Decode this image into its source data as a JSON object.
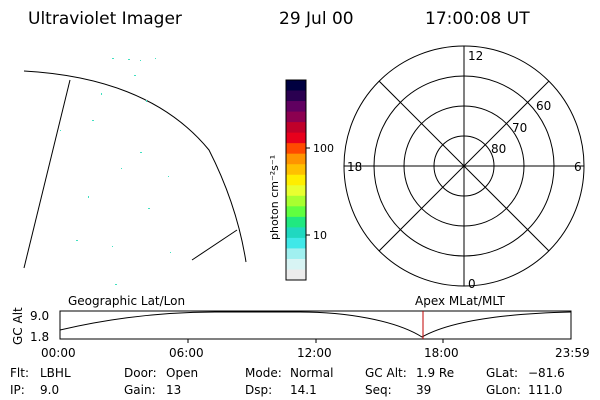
{
  "header": {
    "instrument": "Ultraviolet Imager",
    "date": "29 Jul 00",
    "time": "17:00:08 UT"
  },
  "colorbar": {
    "unit_label": "photon cm⁻²s⁻¹",
    "tick_labels": [
      "100",
      "10"
    ],
    "colors": [
      "#000040",
      "#2a0050",
      "#600060",
      "#8c0050",
      "#c0002a",
      "#e8001c",
      "#ff4a00",
      "#ff9400",
      "#ffc000",
      "#ffee00",
      "#e8ff30",
      "#a8ff30",
      "#60ff40",
      "#20e880",
      "#20d8c0",
      "#40e8e8",
      "#a0f0f0",
      "#d8f4f4",
      "#ececec"
    ]
  },
  "polar": {
    "mlt_labels": {
      "top": "12",
      "left": "18",
      "right": "6",
      "bottom": "0"
    },
    "lat_labels": [
      "60",
      "70",
      "80"
    ]
  },
  "altitude_plot": {
    "axis_label": "GC Alt",
    "y_ticks": [
      "9.0",
      "1.8"
    ],
    "left_title": "Geographic Lat/Lon",
    "right_title": "Apex MLat/MLT",
    "x_ticks": [
      "00:00",
      "06:00",
      "12:00",
      "18:00",
      "23:59"
    ]
  },
  "status": {
    "row1": [
      {
        "key": "Flt:",
        "value": "LBHL"
      },
      {
        "key": "Door:",
        "value": "Open"
      },
      {
        "key": "Mode:",
        "value": "Normal"
      },
      {
        "key": "GC Alt:",
        "value": "1.9 Re"
      },
      {
        "key": "GLat:",
        "value": "−81.6"
      }
    ],
    "row2": [
      {
        "key": "IP:",
        "value": "9.0"
      },
      {
        "key": "Gain:",
        "value": "13"
      },
      {
        "key": "Dsp:",
        "value": "14.1"
      },
      {
        "key": "Seq:",
        "value": "39"
      },
      {
        "key": "GLon:",
        "value": "111.0"
      }
    ]
  }
}
